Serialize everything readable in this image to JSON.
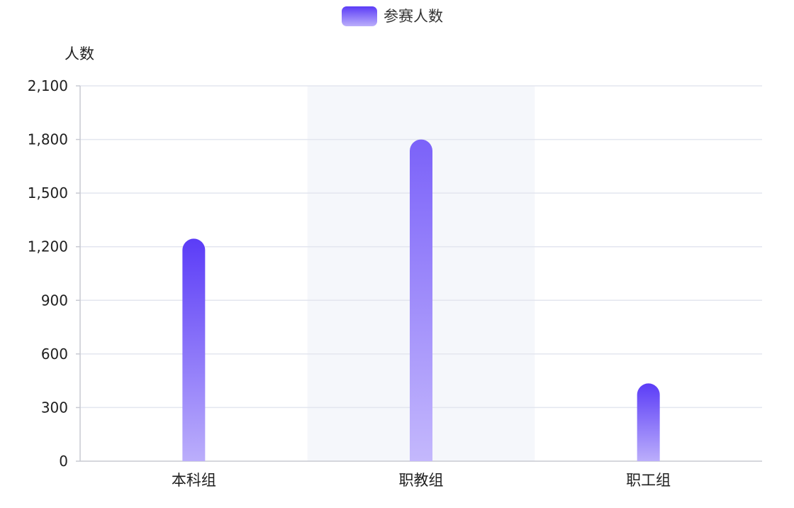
{
  "chart_data": {
    "type": "bar",
    "categories": [
      "本科组",
      "职教组",
      "职工组"
    ],
    "series": [
      {
        "name": "参赛人数",
        "values": [
          1245,
          1800,
          435
        ]
      }
    ],
    "ylabel": "人数",
    "xlabel": "",
    "ylim": [
      0,
      2100
    ],
    "yticks": [
      0,
      300,
      600,
      900,
      1200,
      1500,
      1800,
      2100
    ],
    "ytick_labels": [
      "0",
      "300",
      "600",
      "900",
      "1,200",
      "1,500",
      "1,800",
      "2,100"
    ],
    "grid": true,
    "legend_position": "top-center",
    "highlighted_category": "职教组"
  },
  "colors": {
    "bar_top": "#5b3cf7",
    "bar_bottom": "#bbaefb",
    "bar_top_highlight": "#7b62f9",
    "bar_bottom_highlight": "#c4b8fc",
    "grid": "#e3e6ef",
    "axis": "#c8cad2",
    "text": "#1f1f1f",
    "legend_text": "#333333",
    "highlight_band": "#f5f7fb"
  }
}
